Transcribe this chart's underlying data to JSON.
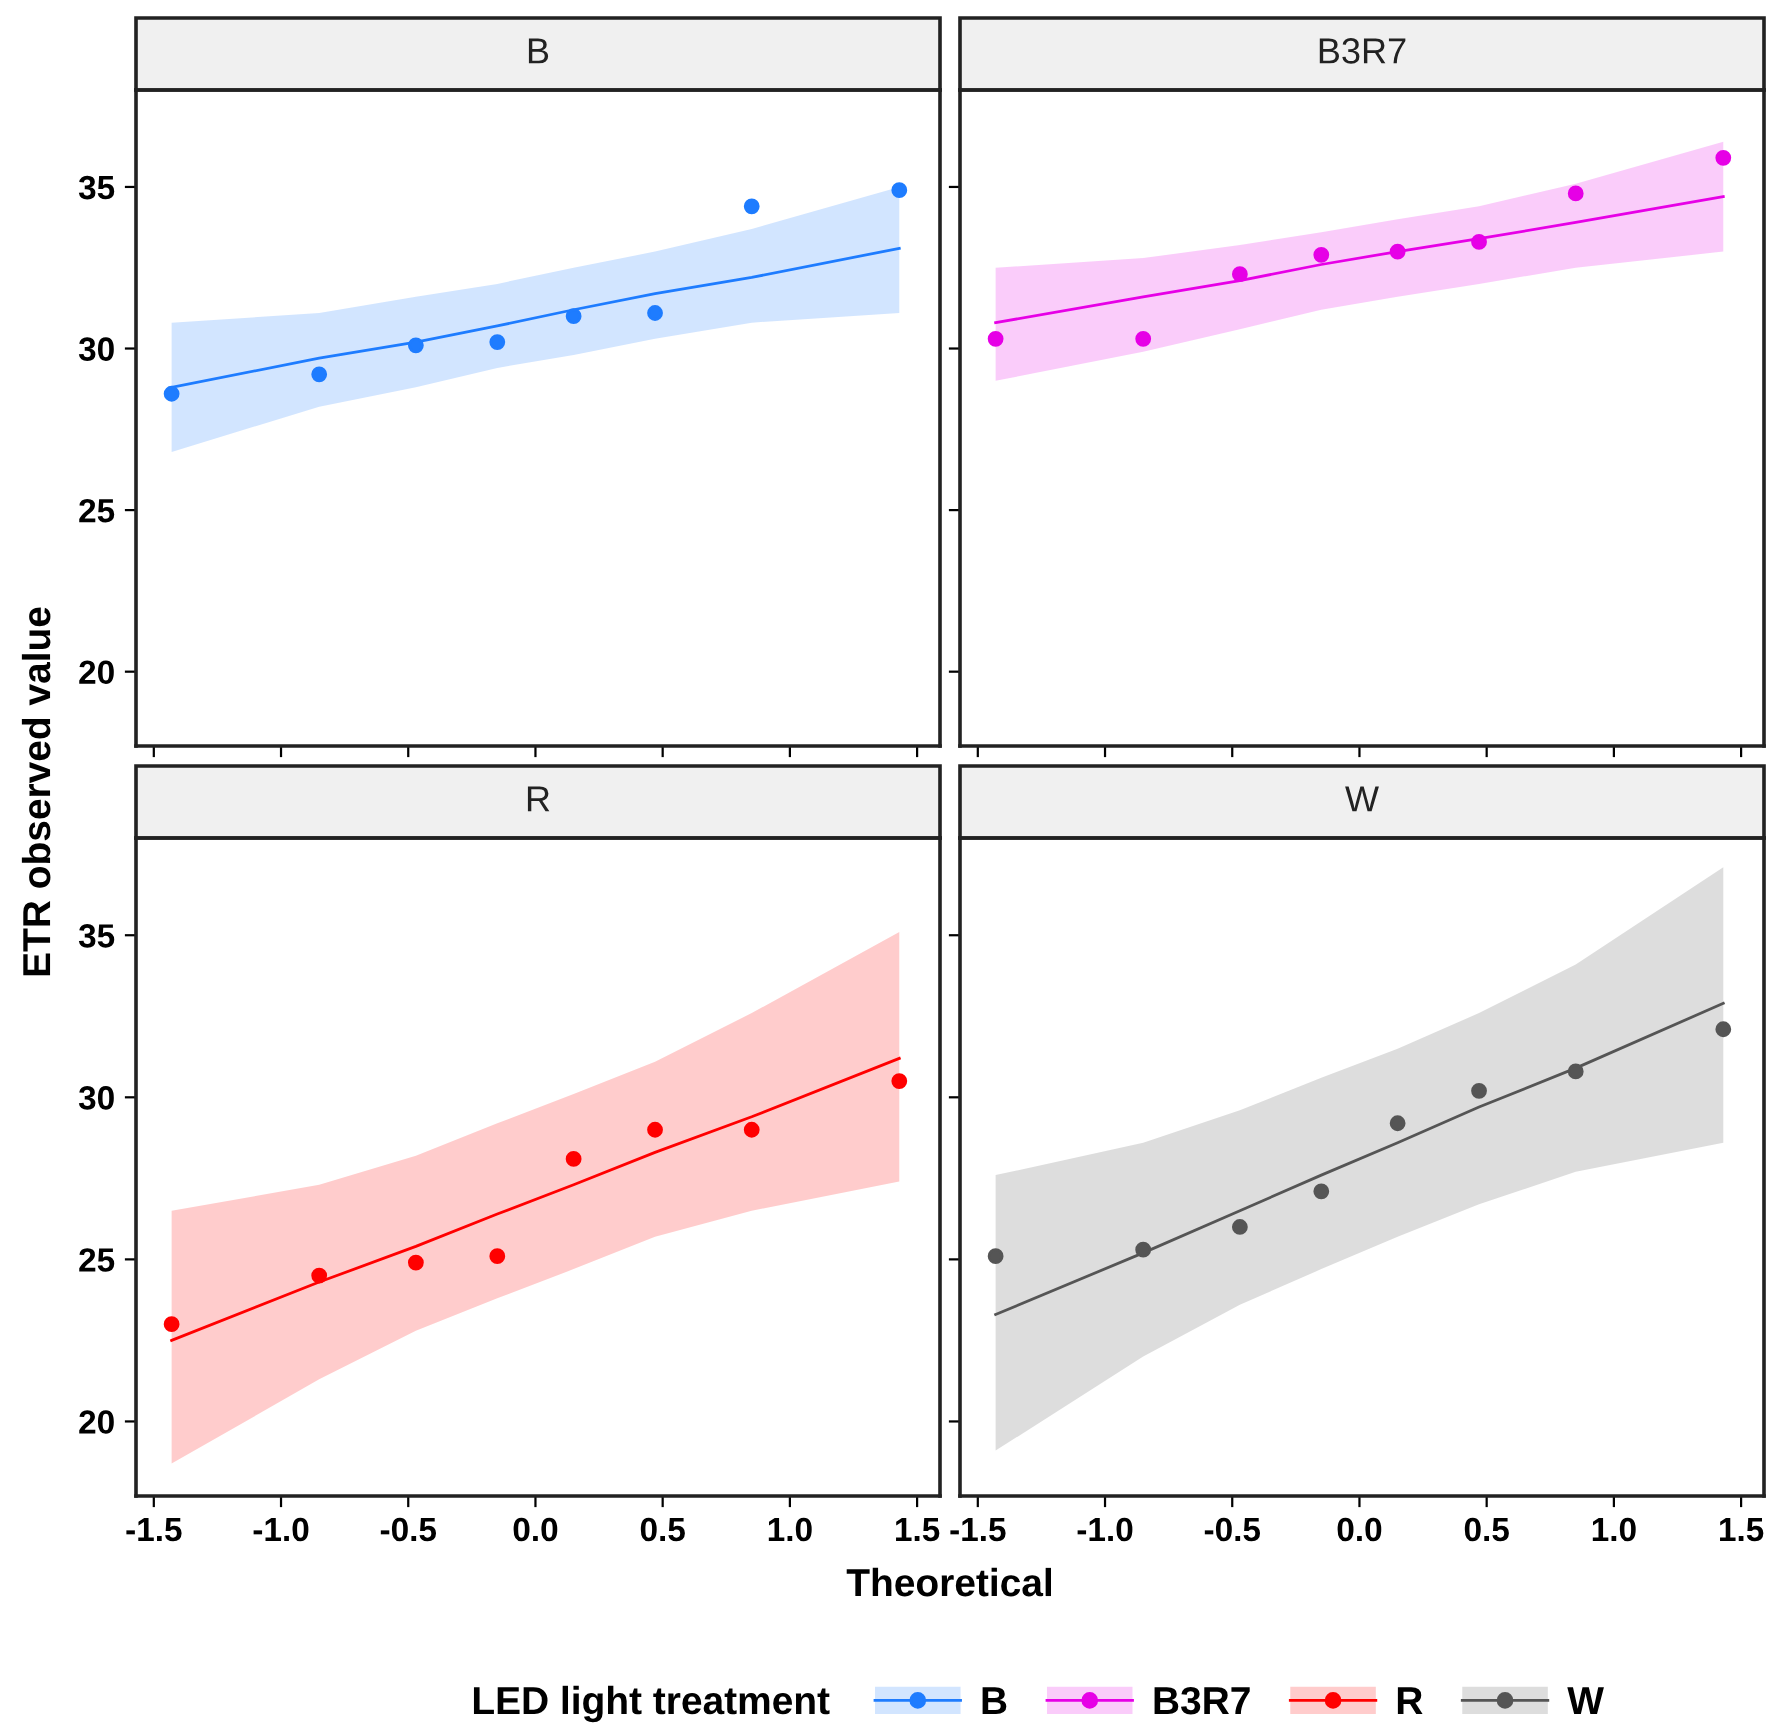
{
  "chart_data": [
    {
      "type": "scatter",
      "title": "B",
      "ylabel": "ETR observed value",
      "legend_title": "LED light treatment",
      "legend": "bottom",
      "grid": false,
      "tick_labels": "y",
      "xlim": [
        -1.57,
        1.59
      ],
      "xticks": [
        -1.5,
        -1,
        -0.5,
        0,
        0.5,
        1,
        1.5
      ],
      "ylim": [
        17.7,
        38.0
      ],
      "yticks": [
        20,
        25,
        30,
        35
      ],
      "series": [
        {
          "name": "B",
          "marker": "circle",
          "color": "#1e7cff",
          "x": [
            -1.43,
            -0.85,
            -0.47,
            -0.15,
            0.15,
            0.47,
            0.85,
            1.43
          ],
          "values": [
            28.6,
            29.2,
            30.1,
            30.2,
            31.0,
            31.1,
            34.4,
            34.9
          ]
        },
        {
          "type": "line",
          "color": "#1e7cff",
          "x": [
            -1.43,
            -0.85,
            -0.47,
            -0.15,
            0.15,
            0.47,
            0.85,
            1.43
          ],
          "values": [
            28.8,
            29.7,
            30.2,
            30.7,
            31.2,
            31.7,
            32.2,
            33.1
          ],
          "lower": [
            26.8,
            28.2,
            28.8,
            29.4,
            29.8,
            30.3,
            30.8,
            31.1
          ],
          "upper": [
            30.8,
            31.1,
            31.6,
            32.0,
            32.5,
            33.0,
            33.7,
            35.0
          ]
        }
      ]
    },
    {
      "type": "scatter",
      "title": "B3R7",
      "grid": false,
      "tick_labels": false,
      "xlim": [
        -1.57,
        1.59
      ],
      "xticks": [
        -1.5,
        -1,
        -0.5,
        0,
        0.5,
        1,
        1.5
      ],
      "ylim": [
        17.7,
        38.0
      ],
      "yticks": [
        20,
        25,
        30,
        35
      ],
      "series": [
        {
          "name": "B3R7",
          "marker": "circle",
          "color": "#e600e6",
          "x": [
            -1.43,
            -0.85,
            -0.47,
            -0.15,
            0.15,
            0.47,
            0.85,
            1.43
          ],
          "values": [
            30.3,
            30.3,
            32.3,
            32.9,
            33.0,
            33.3,
            34.8,
            35.9
          ]
        },
        {
          "type": "line",
          "color": "#e600e6",
          "x": [
            -1.43,
            -0.85,
            -0.47,
            -0.15,
            0.15,
            0.47,
            0.85,
            1.43
          ],
          "values": [
            30.8,
            31.6,
            32.1,
            32.6,
            33.0,
            33.4,
            33.9,
            34.7
          ],
          "lower": [
            29.0,
            29.9,
            30.6,
            31.2,
            31.6,
            32.0,
            32.5,
            33.0
          ],
          "upper": [
            32.5,
            32.8,
            33.2,
            33.6,
            34.0,
            34.4,
            35.1,
            36.4
          ]
        }
      ]
    },
    {
      "type": "scatter",
      "title": "R",
      "xlabel": "Theoretical",
      "grid": false,
      "xlim": [
        -1.57,
        1.59
      ],
      "xticks": [
        -1.5,
        {
          "value": -1.0,
          "label": "-1.0"
        },
        -0.5,
        {
          "value": 0.0,
          "label": "0.0"
        },
        0.5,
        {
          "value": 1.0,
          "label": "1.0"
        },
        1.5
      ],
      "ylim": [
        17.7,
        38.0
      ],
      "yticks": [
        20,
        25,
        30,
        35
      ],
      "series": [
        {
          "name": "R",
          "marker": "circle",
          "color": "#ff0000",
          "x": [
            -1.43,
            -0.85,
            -0.47,
            -0.15,
            0.15,
            0.47,
            0.85,
            1.43
          ],
          "values": [
            23.0,
            24.5,
            24.9,
            25.1,
            28.1,
            29.0,
            29.0,
            30.5
          ]
        },
        {
          "type": "line",
          "color": "#ff0000",
          "x": [
            -1.43,
            -0.85,
            -0.47,
            -0.15,
            0.15,
            0.47,
            0.85,
            1.43
          ],
          "values": [
            22.5,
            24.3,
            25.4,
            26.4,
            27.3,
            28.3,
            29.4,
            31.2
          ],
          "lower": [
            18.7,
            21.3,
            22.8,
            23.8,
            24.7,
            25.7,
            26.5,
            27.4
          ],
          "upper": [
            26.5,
            27.3,
            28.2,
            29.2,
            30.1,
            31.1,
            32.6,
            35.1
          ]
        }
      ]
    },
    {
      "type": "scatter",
      "title": "W",
      "grid": false,
      "tick_labels": "x",
      "xlim": [
        -1.57,
        1.59
      ],
      "xticks": [
        -1.5,
        {
          "value": -1.0,
          "label": "-1.0"
        },
        -0.5,
        {
          "value": 0.0,
          "label": "0.0"
        },
        0.5,
        {
          "value": 1.0,
          "label": "1.0"
        },
        1.5
      ],
      "ylim": [
        17.7,
        38.0
      ],
      "yticks": [
        20,
        25,
        30,
        35
      ],
      "series": [
        {
          "name": "W",
          "marker": "circle",
          "color": "#555555",
          "x": [
            -1.43,
            -0.85,
            -0.47,
            -0.15,
            0.15,
            0.47,
            0.85,
            1.43
          ],
          "values": [
            25.1,
            25.3,
            26.0,
            27.1,
            29.2,
            30.2,
            30.8,
            32.1
          ]
        },
        {
          "type": "line",
          "color": "#555555",
          "x": [
            -1.43,
            -0.85,
            -0.47,
            -0.15,
            0.15,
            0.47,
            0.85,
            1.43
          ],
          "values": [
            23.3,
            25.2,
            26.5,
            27.6,
            28.6,
            29.7,
            30.9,
            32.9
          ],
          "lower": [
            19.1,
            22.0,
            23.6,
            24.7,
            25.7,
            26.7,
            27.7,
            28.6
          ],
          "upper": [
            27.6,
            28.6,
            29.6,
            30.6,
            31.5,
            32.6,
            34.1,
            37.1
          ]
        }
      ]
    }
  ]
}
